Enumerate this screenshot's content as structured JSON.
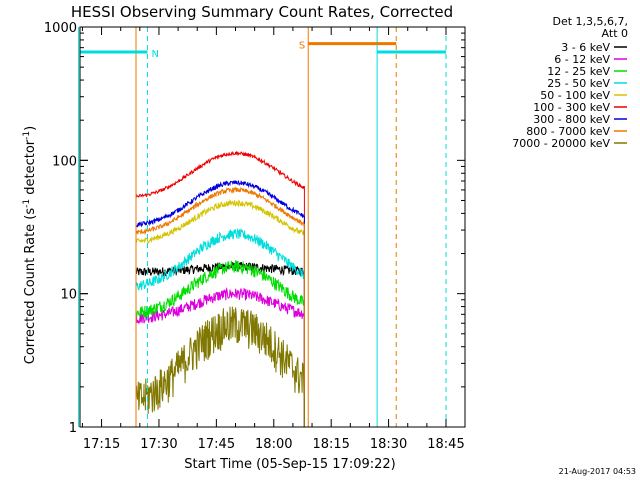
{
  "chart_data": {
    "type": "line",
    "title": "HESSI Observing Summary Count Rates, Corrected",
    "xlabel": "Start Time (05-Sep-15 17:09:22)",
    "ylabel_parts": [
      "Corrected Count Rate (s",
      "-1",
      " detector",
      "-1",
      ")"
    ],
    "yscale": "log",
    "ylim": [
      1,
      1000
    ],
    "xlim_minutes_since_1709_22": [
      0,
      100.6
    ],
    "y_ticks": [
      {
        "value": 1,
        "label": "1"
      },
      {
        "value": 10,
        "label": "10"
      },
      {
        "value": 100,
        "label": "100"
      },
      {
        "value": 1000,
        "label": "1000"
      }
    ],
    "x_ticks": [
      {
        "time": "17:15",
        "label": "17:15"
      },
      {
        "time": "17:30",
        "label": "17:30"
      },
      {
        "time": "17:45",
        "label": "17:45"
      },
      {
        "time": "18:00",
        "label": "18:00"
      },
      {
        "time": "18:15",
        "label": "18:15"
      },
      {
        "time": "18:30",
        "label": "18:30"
      },
      {
        "time": "18:45",
        "label": "18:45"
      }
    ],
    "data_start": "17:24",
    "data_end": "18:08",
    "series": [
      {
        "name": "3 - 6 keV",
        "color": "#000000",
        "base": 14.5,
        "peak": 16,
        "noise": 0.08
      },
      {
        "name": "6 - 12 keV",
        "color": "#dd00dd",
        "base": 6.5,
        "peak": 10,
        "noise": 0.1
      },
      {
        "name": "12 - 25 keV",
        "color": "#00dd00",
        "base": 7.0,
        "peak": 16,
        "noise": 0.11
      },
      {
        "name": "25 - 50 keV",
        "color": "#00dddd",
        "base": 11.0,
        "peak": 28,
        "noise": 0.09
      },
      {
        "name": "50 - 100 keV",
        "color": "#d4c400",
        "base": 24,
        "peak": 48,
        "noise": 0.05
      },
      {
        "name": "100 - 300 keV",
        "color": "#ee0000",
        "base": 52,
        "peak": 113,
        "noise": 0.03
      },
      {
        "name": "300 - 800 keV",
        "color": "#0000dd",
        "base": 32,
        "peak": 68,
        "noise": 0.04
      },
      {
        "name": "800 - 7000 keV",
        "color": "#ee7700",
        "base": 28,
        "peak": 60,
        "noise": 0.04
      },
      {
        "name": "7000 - 20000 keV",
        "color": "#807800",
        "base": 1.5,
        "peak": 6,
        "noise": 0.35
      }
    ],
    "legend": {
      "header1": "Det 1,3,5,6,7,",
      "header2": "Att 0",
      "placement": "right"
    },
    "flags": [
      {
        "label": "N",
        "color": "#00dddd",
        "start": "17:09",
        "end": "17:27",
        "marker": "17:27",
        "level": 650
      },
      {
        "label": "S",
        "color": "#ee7700",
        "start": "18:09",
        "end": "18:32",
        "marker": "18:32",
        "level": 750
      },
      {
        "label": "",
        "color": "#00dddd",
        "start": "18:27",
        "end": "18:45",
        "marker": "18:45",
        "level": 650
      }
    ],
    "vlines": [
      {
        "time": "17:09",
        "color": "#00dddd"
      },
      {
        "time": "17:24",
        "color": "#ee7700"
      },
      {
        "time": "18:09",
        "color": "#ee7700"
      },
      {
        "time": "18:27",
        "color": "#00dddd"
      }
    ],
    "timestamp": "21-Aug-2017 04:53"
  }
}
